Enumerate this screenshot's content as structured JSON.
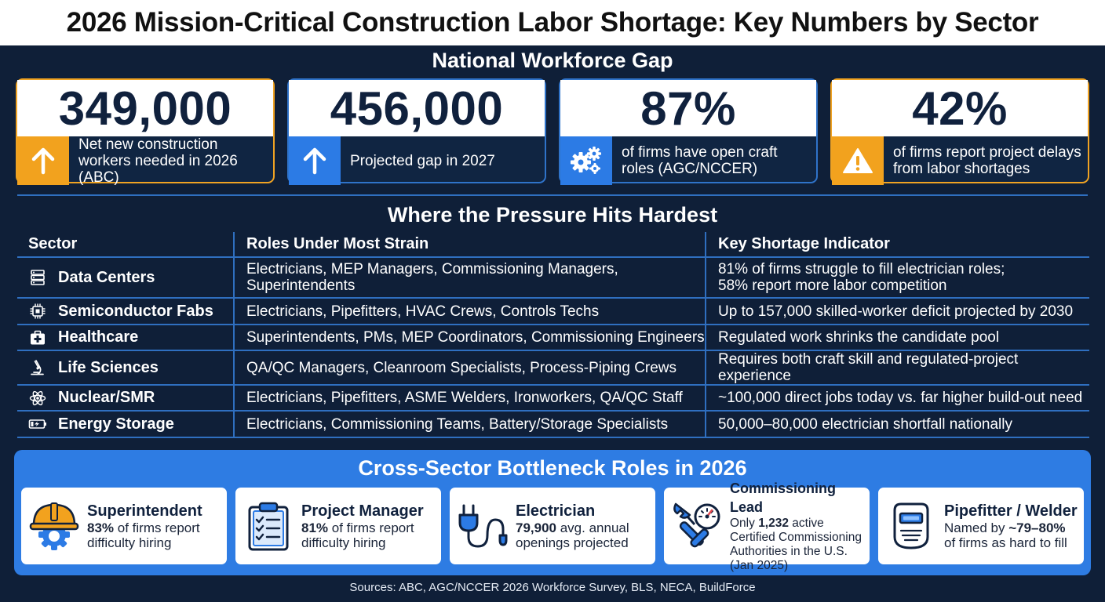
{
  "title": "2026 Mission-Critical Construction Labor Shortage: Key Numbers by Sector",
  "national": {
    "heading": "National Workforce Gap",
    "stats": [
      {
        "value": "349,000",
        "label": "Net new construction workers needed in 2026 (ABC)",
        "icon": "arrow-up-icon",
        "accent": "#f2a21e"
      },
      {
        "value": "456,000",
        "label": "Projected gap in 2027",
        "icon": "arrow-up-icon",
        "accent": "#2c7be5"
      },
      {
        "value": "87%",
        "label": "of firms have open craft roles (AGC/NCCER)",
        "icon": "gears-icon",
        "accent": "#2c7be5"
      },
      {
        "value": "42%",
        "label": "of firms report project delays from labor shortages",
        "icon": "warning-icon",
        "accent": "#f2a21e"
      }
    ]
  },
  "pressure": {
    "heading": "Where the Pressure Hits Hardest",
    "columns": [
      "Sector",
      "Roles Under Most Strain",
      "Key Shortage Indicator"
    ],
    "rows": [
      {
        "sector": "Data Centers",
        "icon": "server-icon",
        "roles": "Electricians, MEP Managers, Commissioning Managers, Superintendents",
        "indicator_line1": "81% of firms struggle to fill electrician roles;",
        "indicator_line2": "58% report more labor competition"
      },
      {
        "sector": "Semiconductor Fabs",
        "icon": "chip-icon",
        "roles": "Electricians, Pipefitters, HVAC Crews, Controls Techs",
        "indicator_line1": "Up to 157,000 skilled-worker deficit projected by 2030",
        "indicator_line2": ""
      },
      {
        "sector": "Healthcare",
        "icon": "medical-kit-icon",
        "roles": "Superintendents, PMs, MEP Coordinators, Commissioning Engineers",
        "indicator_line1": "Regulated work shrinks the candidate pool",
        "indicator_line2": ""
      },
      {
        "sector": "Life Sciences",
        "icon": "microscope-icon",
        "roles": "QA/QC Managers, Cleanroom Specialists, Process-Piping Crews",
        "indicator_line1": "Requires both craft skill and regulated-project experience",
        "indicator_line2": ""
      },
      {
        "sector": "Nuclear/SMR",
        "icon": "atom-icon",
        "roles": "Electricians, Pipefitters, ASME Welders, Ironworkers, QA/QC Staff",
        "indicator_line1": "~100,000 direct jobs today vs. far higher build-out need",
        "indicator_line2": ""
      },
      {
        "sector": "Energy Storage",
        "icon": "battery-icon",
        "roles": "Electricians, Commissioning Teams, Battery/Storage Specialists",
        "indicator_line1": "50,000–80,000 electrician shortfall nationally",
        "indicator_line2": ""
      }
    ]
  },
  "bottleneck": {
    "heading": "Cross-Sector Bottleneck Roles in 2026",
    "roles": [
      {
        "title": "Superintendent",
        "highlight": "83%",
        "desc": " of firms report difficulty hiring",
        "icon": "hardhat-gear-icon"
      },
      {
        "title": "Project Manager",
        "highlight": "81%",
        "desc": " of firms report difficulty hiring",
        "icon": "clipboard-checklist-icon"
      },
      {
        "title": "Electrician",
        "highlight": "79,900",
        "desc": " avg. annual openings projected",
        "icon": "electric-plug-icon"
      },
      {
        "title": "Commissioning Lead",
        "prefix": "Only ",
        "highlight": "1,232",
        "desc": " active Certified Commissioning Authorities in the U.S. (Jan 2025)",
        "icon": "wrench-gauge-icon"
      },
      {
        "title": "Pipefitter / Welder",
        "prefix": "Named by ",
        "highlight": "~79–80%",
        "desc": " of firms as hard to fill",
        "icon": "welding-mask-icon"
      }
    ]
  },
  "sources": "Sources: ABC, AGC/NCCER 2026 Workforce Survey, BLS, NECA, BuildForce"
}
